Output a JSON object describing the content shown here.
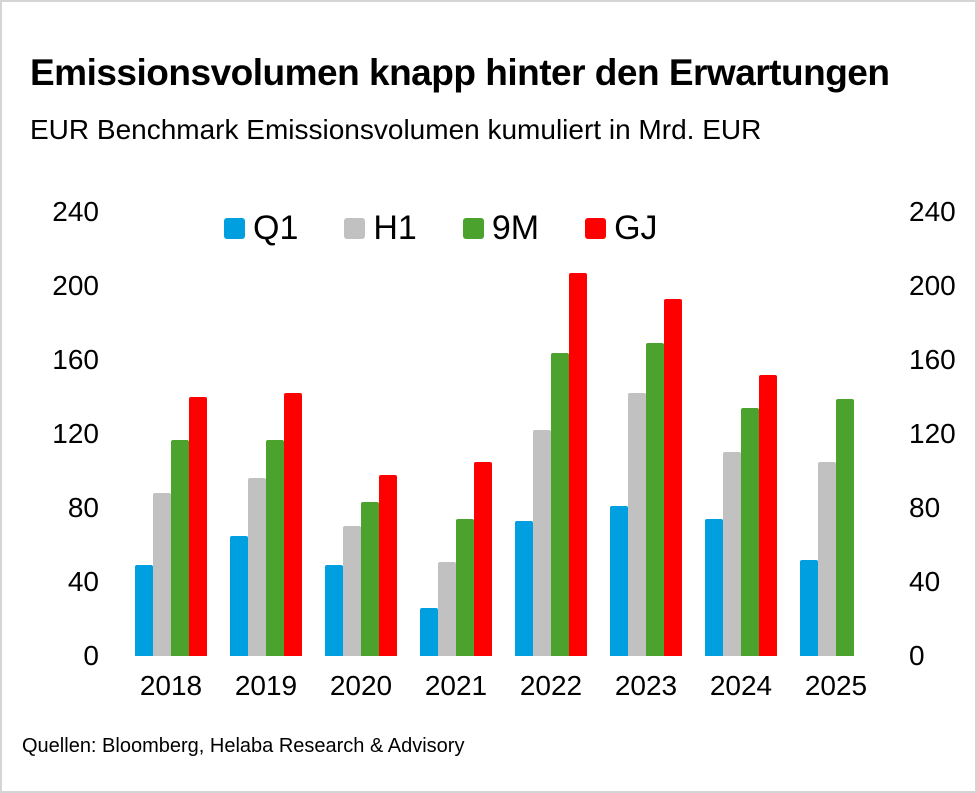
{
  "chart_data": {
    "type": "bar",
    "title": "Emissionsvolumen knapp hinter den Erwartungen",
    "subtitle": "EUR Benchmark Emissionsvolumen kumuliert in Mrd. EUR",
    "source": "Quellen: Bloomberg, Helaba Research & Advisory",
    "unit": "Mrd. EUR",
    "categories": [
      "2018",
      "2019",
      "2020",
      "2021",
      "2022",
      "2023",
      "2024",
      "2025"
    ],
    "series": [
      {
        "name": "Q1",
        "color": "#009FE0",
        "values": [
          49,
          65,
          49,
          26,
          73,
          81,
          74,
          52
        ]
      },
      {
        "name": "H1",
        "color": "#C1C1C1",
        "values": [
          88,
          96,
          70,
          51,
          122,
          142,
          110,
          105
        ]
      },
      {
        "name": "9M",
        "color": "#4BA32E",
        "values": [
          117,
          117,
          83,
          74,
          164,
          169,
          134,
          139
        ]
      },
      {
        "name": "GJ",
        "color": "#FF0000",
        "values": [
          140,
          142,
          98,
          105,
          207,
          193,
          152,
          null
        ]
      }
    ],
    "xlabel": "",
    "ylabel": "",
    "ylim": [
      0,
      240
    ],
    "yticks": [
      0,
      40,
      80,
      120,
      160,
      200,
      240
    ],
    "y_axis_sides": "left and right",
    "grid": false,
    "legend_position": "top-center"
  }
}
